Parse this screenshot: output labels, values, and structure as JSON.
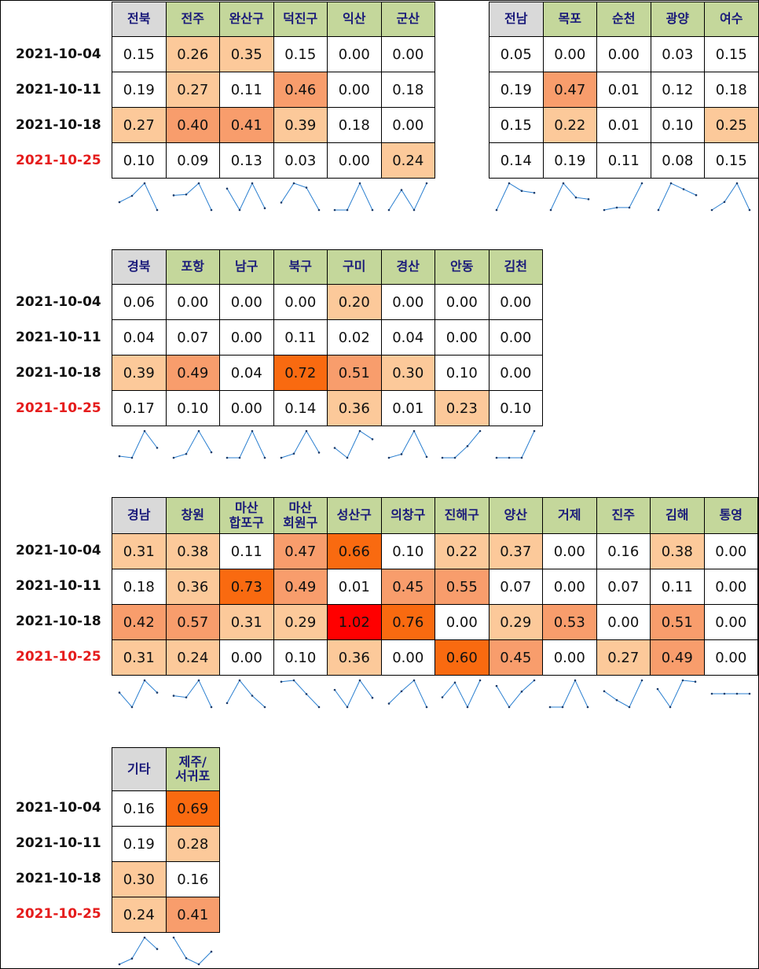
{
  "dates": [
    "2021-10-04",
    "2021-10-11",
    "2021-10-18",
    "2021-10-25"
  ],
  "colors": {
    "region_header_bg": "#d9d9d9",
    "city_header_bg": "#c4d79b",
    "latest_date": "#e51c1c",
    "header_text": "#1a1a7a",
    "sparkline": "#2a7fd0"
  },
  "groups": [
    {
      "columns": [
        {
          "name": "전북",
          "type": "region",
          "values": [
            "0.15",
            "0.19",
            "0.27",
            "0.10"
          ],
          "bg": [
            "#ffffff",
            "#ffffff",
            "#fcc99a",
            "#ffffff"
          ]
        },
        {
          "name": "전주",
          "type": "city",
          "values": [
            "0.26",
            "0.27",
            "0.40",
            "0.09"
          ],
          "bg": [
            "#fcc99a",
            "#fcc99a",
            "#f89d6c",
            "#ffffff"
          ]
        },
        {
          "name": "완산구",
          "type": "city",
          "values": [
            "0.35",
            "0.11",
            "0.41",
            "0.13"
          ],
          "bg": [
            "#fcc99a",
            "#ffffff",
            "#f89d6c",
            "#ffffff"
          ]
        },
        {
          "name": "덕진구",
          "type": "city",
          "values": [
            "0.15",
            "0.46",
            "0.39",
            "0.03"
          ],
          "bg": [
            "#ffffff",
            "#f89d6c",
            "#fcc99a",
            "#ffffff"
          ]
        },
        {
          "name": "익산",
          "type": "city",
          "values": [
            "0.00",
            "0.00",
            "0.18",
            "0.00"
          ],
          "bg": [
            "#ffffff",
            "#ffffff",
            "#ffffff",
            "#ffffff"
          ]
        },
        {
          "name": "군산",
          "type": "city",
          "values": [
            "0.00",
            "0.18",
            "0.00",
            "0.24"
          ],
          "bg": [
            "#ffffff",
            "#ffffff",
            "#ffffff",
            "#fcc99a"
          ]
        }
      ]
    },
    {
      "columns": [
        {
          "name": "전남",
          "type": "region",
          "values": [
            "0.05",
            "0.19",
            "0.15",
            "0.14"
          ],
          "bg": [
            "#ffffff",
            "#ffffff",
            "#ffffff",
            "#ffffff"
          ]
        },
        {
          "name": "목포",
          "type": "city",
          "values": [
            "0.00",
            "0.47",
            "0.22",
            "0.19"
          ],
          "bg": [
            "#ffffff",
            "#f89d6c",
            "#fcc99a",
            "#ffffff"
          ]
        },
        {
          "name": "순천",
          "type": "city",
          "values": [
            "0.00",
            "0.01",
            "0.01",
            "0.11"
          ],
          "bg": [
            "#ffffff",
            "#ffffff",
            "#ffffff",
            "#ffffff"
          ]
        },
        {
          "name": "광양",
          "type": "city",
          "values": [
            "0.03",
            "0.12",
            "0.10",
            "0.08"
          ],
          "bg": [
            "#ffffff",
            "#ffffff",
            "#ffffff",
            "#ffffff"
          ]
        },
        {
          "name": "여수",
          "type": "city",
          "values": [
            "0.15",
            "0.18",
            "0.25",
            "0.15"
          ],
          "bg": [
            "#ffffff",
            "#ffffff",
            "#fcc99a",
            "#ffffff"
          ]
        }
      ]
    },
    {
      "columns": [
        {
          "name": "경북",
          "type": "region",
          "values": [
            "0.06",
            "0.04",
            "0.39",
            "0.17"
          ],
          "bg": [
            "#ffffff",
            "#ffffff",
            "#fcc99a",
            "#ffffff"
          ]
        },
        {
          "name": "포항",
          "type": "city",
          "values": [
            "0.00",
            "0.07",
            "0.49",
            "0.10"
          ],
          "bg": [
            "#ffffff",
            "#ffffff",
            "#f89d6c",
            "#ffffff"
          ]
        },
        {
          "name": "남구",
          "type": "city",
          "values": [
            "0.00",
            "0.00",
            "0.04",
            "0.00"
          ],
          "bg": [
            "#ffffff",
            "#ffffff",
            "#ffffff",
            "#ffffff"
          ]
        },
        {
          "name": "북구",
          "type": "city",
          "values": [
            "0.00",
            "0.11",
            "0.72",
            "0.14"
          ],
          "bg": [
            "#ffffff",
            "#ffffff",
            "#f96a10",
            "#ffffff"
          ]
        },
        {
          "name": "구미",
          "type": "city",
          "values": [
            "0.20",
            "0.02",
            "0.51",
            "0.36"
          ],
          "bg": [
            "#fcc99a",
            "#ffffff",
            "#f89d6c",
            "#fcc99a"
          ]
        },
        {
          "name": "경산",
          "type": "city",
          "values": [
            "0.00",
            "0.04",
            "0.30",
            "0.01"
          ],
          "bg": [
            "#ffffff",
            "#ffffff",
            "#fcc99a",
            "#ffffff"
          ]
        },
        {
          "name": "안동",
          "type": "city",
          "values": [
            "0.00",
            "0.00",
            "0.10",
            "0.23"
          ],
          "bg": [
            "#ffffff",
            "#ffffff",
            "#ffffff",
            "#fcc99a"
          ]
        },
        {
          "name": "김천",
          "type": "city",
          "values": [
            "0.00",
            "0.00",
            "0.00",
            "0.10"
          ],
          "bg": [
            "#ffffff",
            "#ffffff",
            "#ffffff",
            "#ffffff"
          ]
        }
      ]
    },
    {
      "columns": [
        {
          "name": "경남",
          "type": "region",
          "values": [
            "0.31",
            "0.18",
            "0.42",
            "0.31"
          ],
          "bg": [
            "#fcc99a",
            "#ffffff",
            "#f89d6c",
            "#fcc99a"
          ]
        },
        {
          "name": "창원",
          "type": "city",
          "values": [
            "0.38",
            "0.36",
            "0.57",
            "0.24"
          ],
          "bg": [
            "#fcc99a",
            "#fcc99a",
            "#f89d6c",
            "#fcc99a"
          ]
        },
        {
          "name": "마산\n합포구",
          "type": "city",
          "values": [
            "0.11",
            "0.73",
            "0.31",
            "0.00"
          ],
          "bg": [
            "#ffffff",
            "#f96a10",
            "#fcc99a",
            "#ffffff"
          ]
        },
        {
          "name": "마산\n회원구",
          "type": "city",
          "values": [
            "0.47",
            "0.49",
            "0.29",
            "0.10"
          ],
          "bg": [
            "#f89d6c",
            "#f89d6c",
            "#fcc99a",
            "#ffffff"
          ]
        },
        {
          "name": "성산구",
          "type": "city",
          "values": [
            "0.66",
            "0.01",
            "1.02",
            "0.36"
          ],
          "bg": [
            "#f96a10",
            "#ffffff",
            "#ff0000",
            "#fcc99a"
          ]
        },
        {
          "name": "의창구",
          "type": "city",
          "values": [
            "0.10",
            "0.45",
            "0.76",
            "0.00"
          ],
          "bg": [
            "#ffffff",
            "#f89d6c",
            "#f96a10",
            "#ffffff"
          ]
        },
        {
          "name": "진해구",
          "type": "city",
          "values": [
            "0.22",
            "0.55",
            "0.00",
            "0.60"
          ],
          "bg": [
            "#fcc99a",
            "#f89d6c",
            "#ffffff",
            "#f96a10"
          ]
        },
        {
          "name": "양산",
          "type": "city",
          "values": [
            "0.37",
            "0.07",
            "0.29",
            "0.45"
          ],
          "bg": [
            "#fcc99a",
            "#ffffff",
            "#fcc99a",
            "#f89d6c"
          ]
        },
        {
          "name": "거제",
          "type": "city",
          "values": [
            "0.00",
            "0.00",
            "0.53",
            "0.00"
          ],
          "bg": [
            "#ffffff",
            "#ffffff",
            "#f89d6c",
            "#ffffff"
          ]
        },
        {
          "name": "진주",
          "type": "city",
          "values": [
            "0.16",
            "0.07",
            "0.00",
            "0.27"
          ],
          "bg": [
            "#ffffff",
            "#ffffff",
            "#ffffff",
            "#fcc99a"
          ]
        },
        {
          "name": "김해",
          "type": "city",
          "values": [
            "0.38",
            "0.11",
            "0.51",
            "0.49"
          ],
          "bg": [
            "#fcc99a",
            "#ffffff",
            "#f89d6c",
            "#f89d6c"
          ]
        },
        {
          "name": "통영",
          "type": "city",
          "values": [
            "0.00",
            "0.00",
            "0.00",
            "0.00"
          ],
          "bg": [
            "#ffffff",
            "#ffffff",
            "#ffffff",
            "#ffffff"
          ]
        }
      ]
    },
    {
      "columns": [
        {
          "name": "기타",
          "type": "region",
          "values": [
            "0.16",
            "0.19",
            "0.30",
            "0.24"
          ],
          "bg": [
            "#ffffff",
            "#ffffff",
            "#fcc99a",
            "#fcc99a"
          ]
        },
        {
          "name": "제주/\n서귀포",
          "type": "city",
          "values": [
            "0.69",
            "0.28",
            "0.16",
            "0.41"
          ],
          "bg": [
            "#f96a10",
            "#fcc99a",
            "#ffffff",
            "#f89d6c"
          ]
        }
      ]
    }
  ]
}
